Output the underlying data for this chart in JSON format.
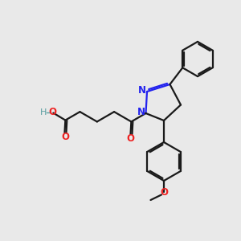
{
  "bg_color": "#e9e9e9",
  "bond_color": "#1a1a1a",
  "N_color": "#2222ee",
  "O_color": "#ee2222",
  "H_color": "#5a9ea0",
  "lw": 1.6,
  "figsize": [
    3.0,
    3.0
  ],
  "dpi": 100,
  "xlim": [
    0,
    10
  ],
  "ylim": [
    0,
    10
  ]
}
